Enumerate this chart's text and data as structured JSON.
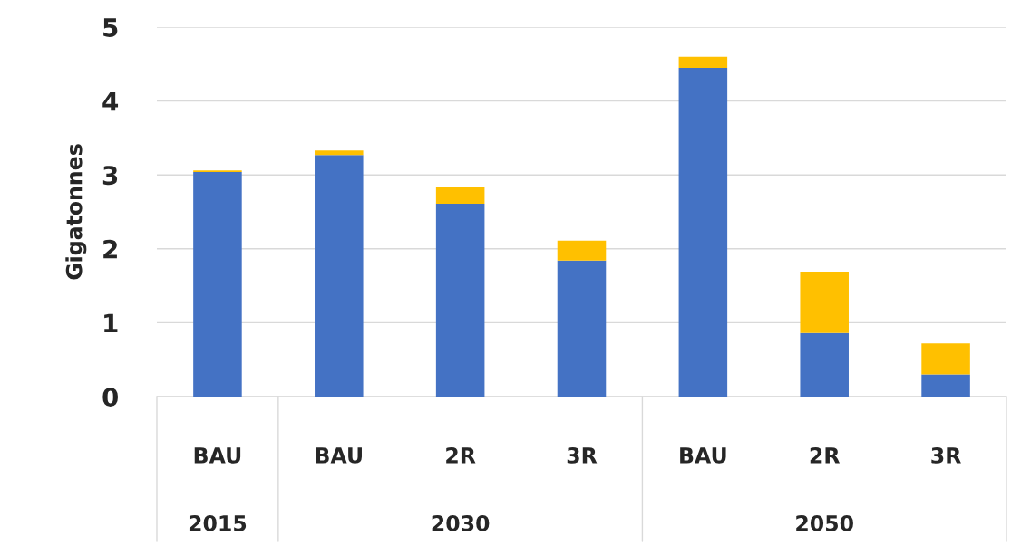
{
  "chart_data": {
    "type": "bar",
    "ylabel": "Gigatonnes",
    "stacked": true,
    "categories": [
      "BAU",
      "BAU",
      "2R",
      "3R",
      "BAU",
      "2R",
      "3R"
    ],
    "series": [
      {
        "color": "#4472c4",
        "values": [
          3.04,
          3.27,
          2.61,
          1.84,
          4.45,
          0.86,
          0.3
        ]
      },
      {
        "color": "#ffc000",
        "values": [
          0.02,
          0.06,
          0.22,
          0.27,
          0.15,
          0.83,
          0.42
        ]
      }
    ],
    "ylim": [
      0,
      5
    ],
    "yticks": [
      0,
      1,
      2,
      3,
      4,
      5
    ],
    "grid": "y",
    "annotations": [
      "2015",
      "2030",
      "2050"
    ]
  }
}
